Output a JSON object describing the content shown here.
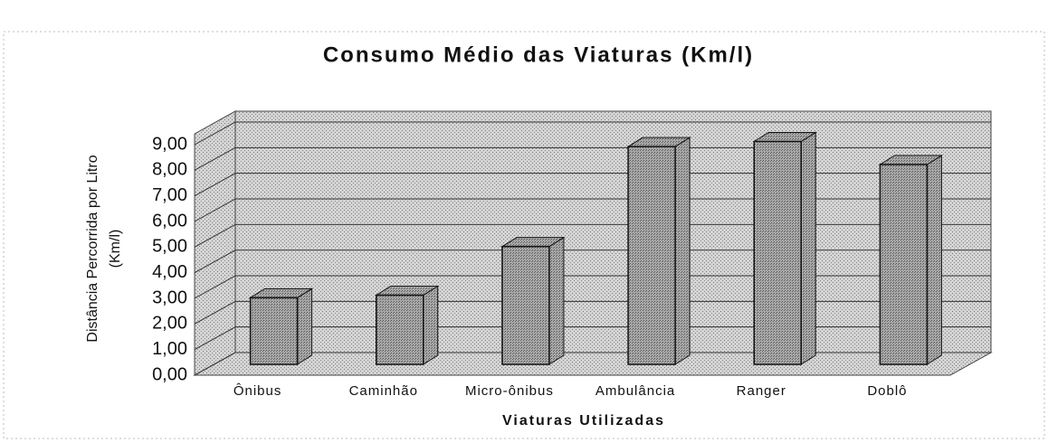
{
  "chart_data": {
    "type": "bar3d",
    "title": "Consumo Médio das Viaturas (Km/l)",
    "ylabel": [
      "Distância Percorrida por Litro",
      "(Km/l)"
    ],
    "xlabel": "Viaturas Utilizadas",
    "categories": [
      "Ônibus",
      "Caminhão",
      "Micro-ônibus",
      "Ambulância",
      "Ranger",
      "Doblô"
    ],
    "values": [
      2.6,
      2.7,
      4.6,
      8.5,
      8.7,
      7.8
    ],
    "color": "#9a9a9a",
    "ylim": [
      0,
      9
    ],
    "yticks": [
      {
        "value": 0,
        "label": "0,00"
      },
      {
        "value": 1,
        "label": "1,00"
      },
      {
        "value": 2,
        "label": "2,00"
      },
      {
        "value": 3,
        "label": "3,00"
      },
      {
        "value": 4,
        "label": "4,00"
      },
      {
        "value": 5,
        "label": "5,00"
      },
      {
        "value": 6,
        "label": "6,00"
      },
      {
        "value": 7,
        "label": "7,00"
      },
      {
        "value": 8,
        "label": "8,00"
      },
      {
        "value": 9,
        "label": "9,00"
      }
    ],
    "grid": true
  }
}
